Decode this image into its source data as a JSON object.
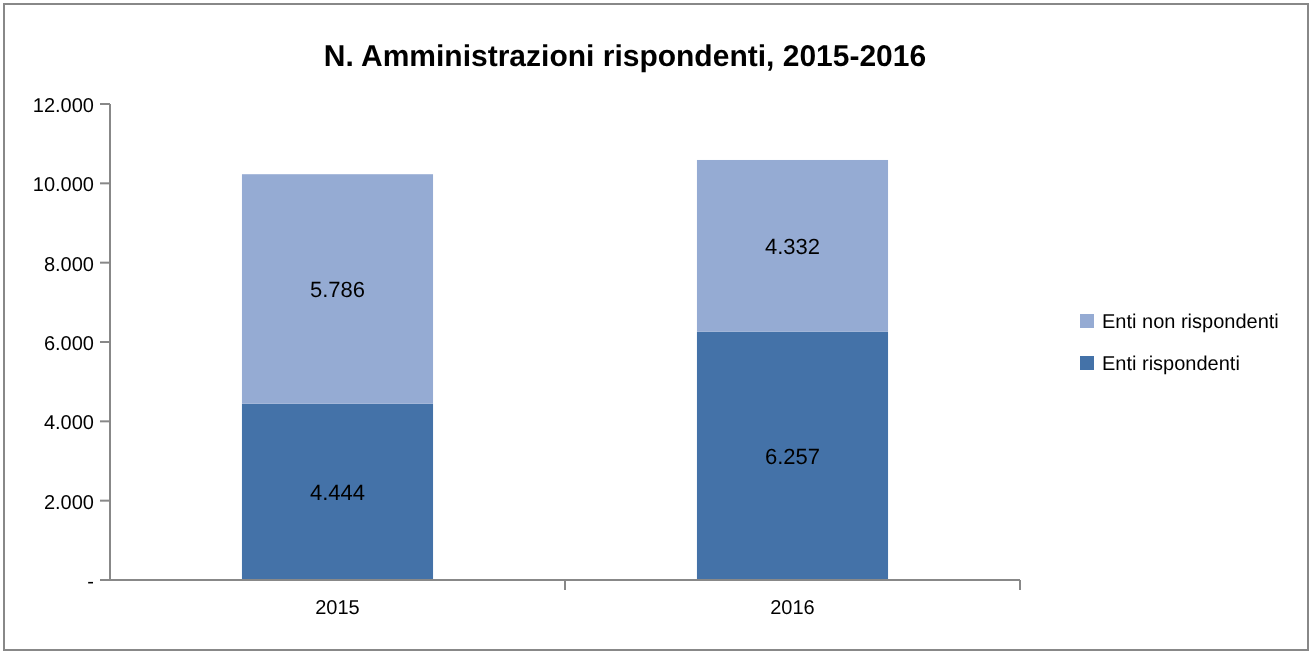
{
  "chart_data": {
    "type": "bar",
    "title": "N. Amministrazioni rispondenti, 2015-2016",
    "categories": [
      "2015",
      "2016"
    ],
    "stacked": true,
    "series": [
      {
        "name": "Enti rispondenti",
        "color": "#4472a8",
        "values": [
          4444,
          6257
        ],
        "value_labels": [
          "4.444",
          "6.257"
        ]
      },
      {
        "name": "Enti non rispondenti",
        "color": "#95abd3",
        "values": [
          5786,
          4332
        ],
        "value_labels": [
          "5.786",
          "4.332"
        ]
      }
    ],
    "ylim": [
      0,
      12000
    ],
    "yticks": [
      {
        "value": 0,
        "label": "-"
      },
      {
        "value": 2000,
        "label": "2.000"
      },
      {
        "value": 4000,
        "label": "4.000"
      },
      {
        "value": 6000,
        "label": "6.000"
      },
      {
        "value": 8000,
        "label": "8.000"
      },
      {
        "value": 10000,
        "label": "10.000"
      },
      {
        "value": 12000,
        "label": "12.000"
      }
    ],
    "grid": false,
    "legend": "right"
  }
}
